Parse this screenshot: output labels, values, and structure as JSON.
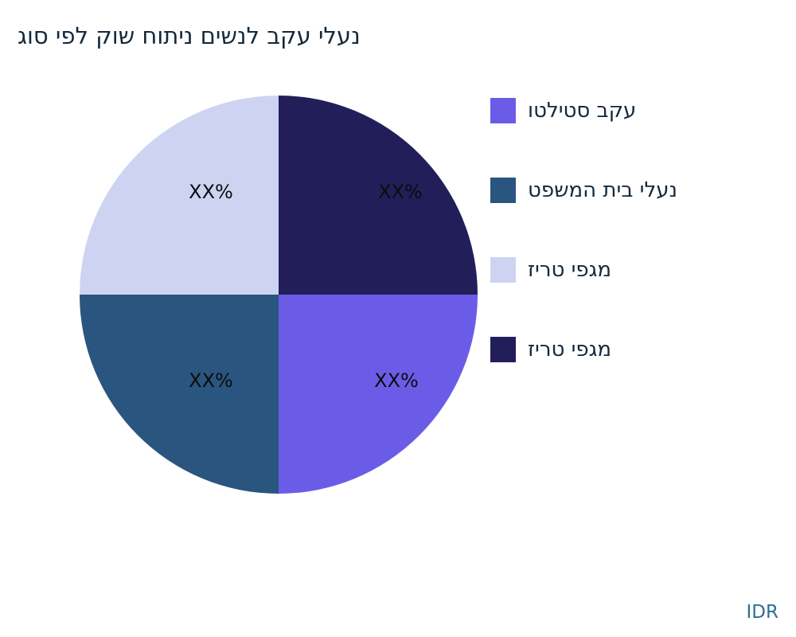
{
  "title": "נעלי עקב לנשים ניתוח שוק לפי סוג",
  "footer": {
    "currency": "IDR"
  },
  "legend": {
    "position": "right",
    "items": [
      {
        "label": "עקב סטילטו",
        "color": "#6B5CE8"
      },
      {
        "label": "נעלי בית המשפט",
        "color": "#2A557E"
      },
      {
        "label": "מגפי טריז",
        "color": "#CED3F2"
      },
      {
        "label": "מגפי טריז",
        "color": "#221E5A"
      }
    ]
  },
  "chart_data": {
    "type": "pie",
    "title": "נעלי עקב לנשים ניתוח שוק לפי סוג",
    "start_angle": "top",
    "direction": "clockwise",
    "legend_position": "right",
    "slices": [
      {
        "label": "מגפי טריז",
        "value": 25,
        "data_label": "XX%",
        "color": "#221E5A",
        "position": "top-right"
      },
      {
        "label": "עקב סטילטו",
        "value": 25,
        "data_label": "XX%",
        "color": "#6B5CE8",
        "position": "bottom-right"
      },
      {
        "label": "נעלי בית המשפט",
        "value": 25,
        "data_label": "XX%",
        "color": "#2A557E",
        "position": "bottom-left"
      },
      {
        "label": "מגפי טריז",
        "value": 25,
        "data_label": "XX%",
        "color": "#CED3F2",
        "position": "top-left"
      }
    ]
  }
}
